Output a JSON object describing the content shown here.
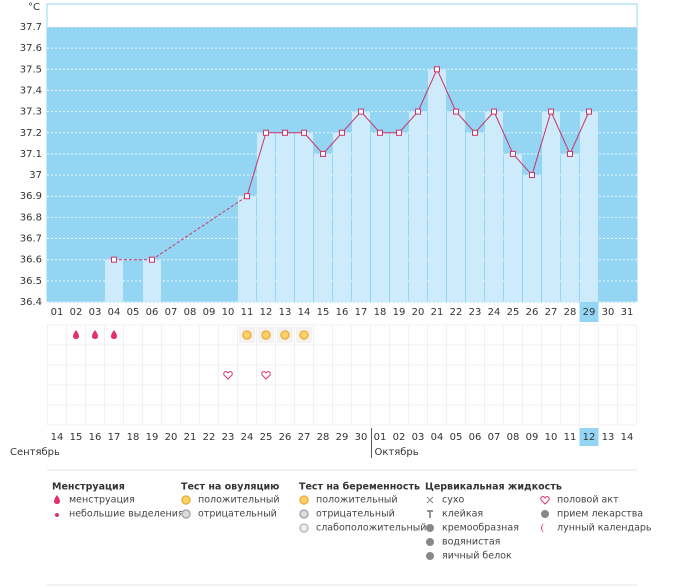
{
  "chart_data": {
    "type": "line",
    "ylabel": "°C",
    "categories": [
      "01",
      "02",
      "03",
      "04",
      "05",
      "06",
      "07",
      "08",
      "09",
      "10",
      "11",
      "12",
      "13",
      "14",
      "15",
      "16",
      "17",
      "18",
      "19",
      "20",
      "21",
      "22",
      "23",
      "24",
      "25",
      "26",
      "27",
      "28",
      "29",
      "30",
      "31"
    ],
    "values": [
      null,
      null,
      null,
      36.6,
      null,
      36.6,
      null,
      null,
      null,
      null,
      36.9,
      37.2,
      37.2,
      37.2,
      37.1,
      37.2,
      37.3,
      37.2,
      37.2,
      37.3,
      37.5,
      37.3,
      37.2,
      37.3,
      37.1,
      37.0,
      37.3,
      37.1,
      37.3,
      null,
      null
    ],
    "ylim": [
      36.4,
      37.7
    ],
    "yticks": [
      36.4,
      36.5,
      36.6,
      36.7,
      36.8,
      36.9,
      37,
      37.1,
      37.2,
      37.3,
      37.4,
      37.5,
      37.6,
      37.7
    ],
    "color": "#cc3366",
    "bar_color": "#cdebfb",
    "background": "#93d5f3",
    "grid": true,
    "today": "29"
  },
  "calendar": {
    "months": [
      {
        "name": "Сентябрь",
        "dates": [
          {
            "label": "14",
            "weekend": false
          },
          {
            "label": "15",
            "weekend": true
          },
          {
            "label": "16",
            "weekend": true
          },
          {
            "label": "17",
            "weekend": false
          },
          {
            "label": "18",
            "weekend": false
          },
          {
            "label": "19",
            "weekend": false
          },
          {
            "label": "20",
            "weekend": false
          },
          {
            "label": "21",
            "weekend": false
          },
          {
            "label": "22",
            "weekend": true
          },
          {
            "label": "23",
            "weekend": true
          },
          {
            "label": "24",
            "weekend": false
          },
          {
            "label": "25",
            "weekend": false
          },
          {
            "label": "26",
            "weekend": false
          },
          {
            "label": "27",
            "weekend": false
          },
          {
            "label": "28",
            "weekend": false
          },
          {
            "label": "29",
            "weekend": true
          },
          {
            "label": "30",
            "weekend": true
          }
        ]
      },
      {
        "name": "Октябрь",
        "dates": [
          {
            "label": "01",
            "weekend": false
          },
          {
            "label": "02",
            "weekend": false
          },
          {
            "label": "03",
            "weekend": false
          },
          {
            "label": "04",
            "weekend": false
          },
          {
            "label": "05",
            "weekend": false
          },
          {
            "label": "06",
            "weekend": true
          },
          {
            "label": "07",
            "weekend": true
          },
          {
            "label": "08",
            "weekend": false
          },
          {
            "label": "09",
            "weekend": false
          },
          {
            "label": "10",
            "weekend": false
          },
          {
            "label": "11",
            "weekend": false
          },
          {
            "label": "12",
            "weekend": false
          },
          {
            "label": "13",
            "weekend": true
          },
          {
            "label": "14",
            "weekend": true
          }
        ]
      }
    ]
  },
  "legend": [
    {
      "title": "Менструация",
      "items": [
        {
          "label": "менструация",
          "days": [
            "02",
            "03",
            "04"
          ]
        },
        {
          "label": "небольшие выделения",
          "days": []
        }
      ]
    },
    {
      "title": "Тест на овуляцию",
      "items": [
        {
          "label": "положительный",
          "days": [
            "11",
            "12",
            "13",
            "14"
          ]
        },
        {
          "label": "отрицательный",
          "days": []
        }
      ]
    },
    {
      "title": "Тест на беременность",
      "items": [
        {
          "label": "положительный",
          "days": []
        },
        {
          "label": "отрицательный",
          "days": []
        },
        {
          "label": "слабоположительный",
          "days": []
        }
      ]
    },
    {
      "title": "Цервикальная жидкость",
      "items": [
        {
          "label": "сухо",
          "days": []
        },
        {
          "label": "клейкая",
          "days": []
        },
        {
          "label": "кремообразная",
          "days": []
        },
        {
          "label": "водянистая",
          "days": []
        },
        {
          "label": "яичный белок",
          "days": []
        }
      ]
    },
    {
      "items": [
        {
          "label": "половой акт",
          "days": [
            "10",
            "12"
          ]
        },
        {
          "label": "прием лекарства",
          "days": []
        },
        {
          "label": "лунный календарь",
          "days": []
        }
      ]
    }
  ]
}
